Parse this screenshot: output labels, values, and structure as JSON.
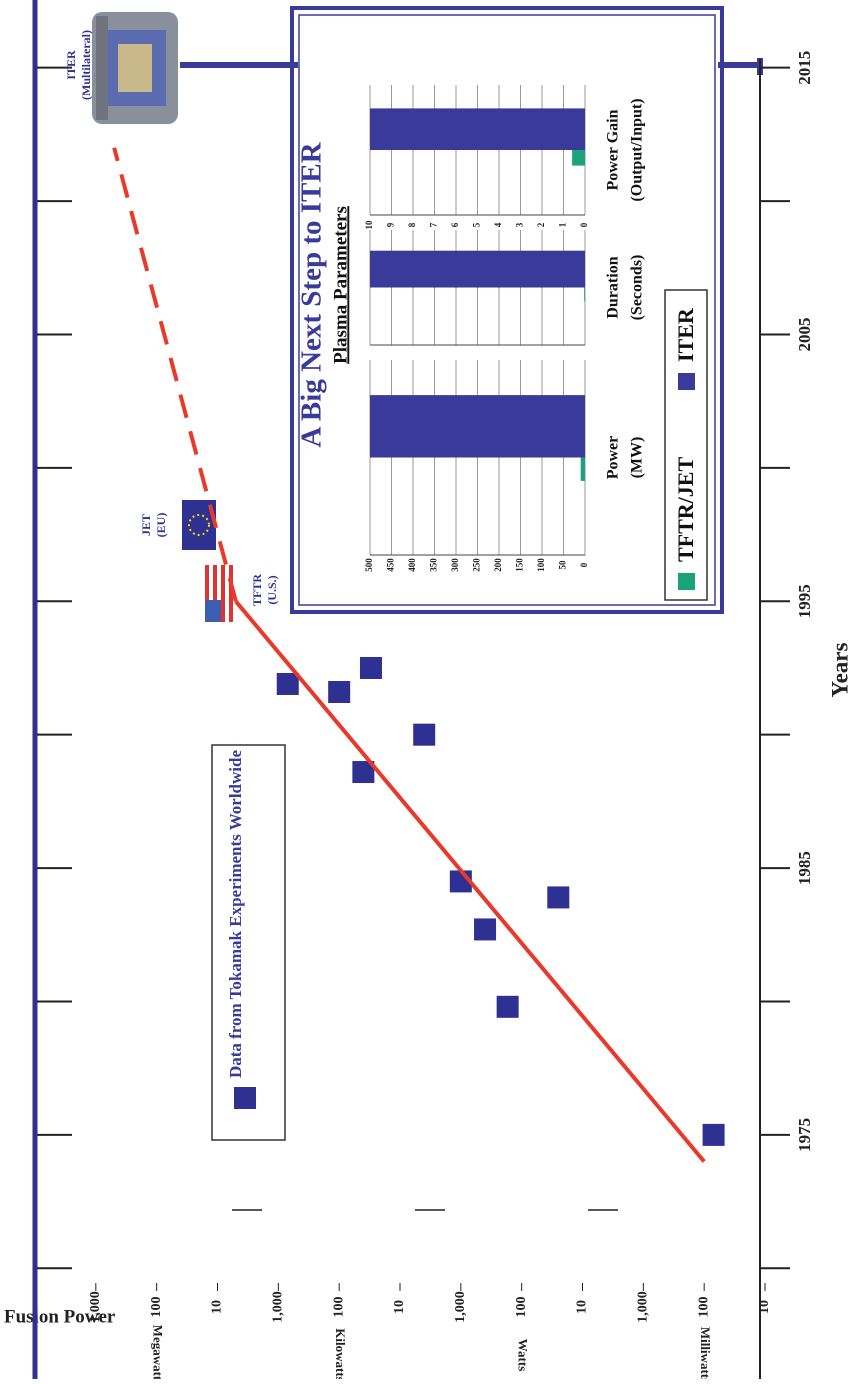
{
  "chart_data": [
    {
      "type": "scatter",
      "xlabel": "Years",
      "ylabel": "Fusion Power",
      "xlim": [
        1966,
        2016
      ],
      "xticks": [
        1975,
        1985,
        1995,
        2005,
        2015
      ],
      "minor_xticks": [
        1970,
        1980,
        1990,
        2000,
        2010
      ],
      "log_y": true,
      "ylim": [
        0.01,
        10000000000
      ],
      "yticks": [
        {
          "value": 1000000000,
          "label": "1,000"
        },
        {
          "value": 100000000,
          "label": "100"
        },
        {
          "value": 10000000,
          "label": "10"
        },
        {
          "value": 1000000,
          "label": "1,000"
        },
        {
          "value": 100000,
          "label": "100"
        },
        {
          "value": 10000,
          "label": "10"
        },
        {
          "value": 1000,
          "label": "1,000"
        },
        100,
        10,
        {
          "value": 1,
          "label": "1,000"
        },
        {
          "value": 0.1,
          "label": "100"
        },
        {
          "value": 0.01,
          "label": "10"
        }
      ],
      "y_units": [
        "Megawatts",
        "Kilowatts",
        "Watts",
        "Milliwatts"
      ],
      "series": [
        {
          "name": "Data from Tokamak Experiments Worldwide",
          "color": "#2e3192",
          "x": [
            1975,
            1979.8,
            1982.7,
            1983.9,
            1984.5,
            1988.6,
            1990,
            1991.6,
            1992.5,
            1991.9
          ],
          "values": [
            0.07,
            170,
            400,
            25,
            1000,
            40000,
            4000,
            100000,
            30000,
            700000
          ]
        },
        {
          "type": "line",
          "color": "#e8392a",
          "x": [
            1974,
            1995
          ],
          "values": [
            0.1,
            5000000
          ]
        },
        {
          "type": "line",
          "dashed": true,
          "color": "#e8392a",
          "x": [
            1995,
            2012
          ],
          "values": [
            5000000,
            500000000
          ]
        }
      ],
      "annotations": [
        [
          "TFTR",
          "(U.S.)"
        ],
        [
          "JET",
          "(EU)"
        ],
        [
          "ITER",
          "(Multilateral)"
        ]
      ]
    },
    {
      "type": "bar",
      "title": "A Big Next Step to ITER",
      "subtitle": "Plasma Parameters",
      "categories": [
        [
          "Power",
          "(MW)"
        ],
        [
          "Duration",
          "(Seconds)"
        ],
        [
          "Power Gain",
          "(Output/Input)"
        ]
      ],
      "series": [
        {
          "name": "TFTR/JET",
          "color": "#1aa37a",
          "values": [
            10,
            2,
            0.6
          ]
        },
        {
          "name": "ITER",
          "color": "#3a3a9a",
          "values": [
            500,
            500,
            10
          ]
        }
      ],
      "panels": [
        {
          "ylim": [
            0,
            500
          ],
          "yticks": [
            0,
            50,
            100,
            150,
            200,
            250,
            300,
            350,
            400,
            450,
            500
          ]
        },
        {
          "ylim": [
            0,
            500
          ],
          "gridticks": [
            0,
            50,
            100,
            150,
            200,
            250,
            300,
            350,
            400,
            450,
            500
          ]
        },
        {
          "ylim": [
            0,
            10
          ],
          "yticks": [
            0,
            1,
            2,
            3,
            4,
            5,
            6,
            7,
            8,
            9,
            10
          ]
        }
      ]
    }
  ]
}
